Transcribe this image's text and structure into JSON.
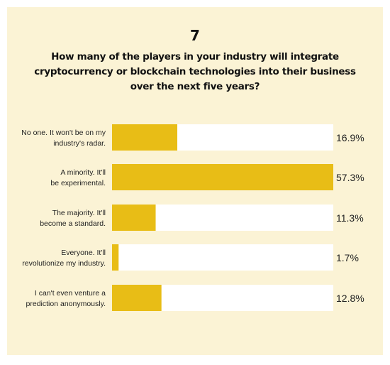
{
  "figure_number": "7",
  "colors": {
    "background": "#fbf3d5",
    "bar": "#e8bd16",
    "track": "#ffffff"
  },
  "chart_data": {
    "type": "bar",
    "orientation": "horizontal",
    "title": "How many of the players in your industry will integrate cryptocurrency or blockchain technologies into their business over the next five years?",
    "categories": [
      "No one. It won't be on my industry's radar.",
      "A minority. It'll be experimental.",
      "The majority. It'll become a standard.",
      "Everyone. It'll revolutionize my industry.",
      "I can't even venture a prediction anonymously."
    ],
    "category_lines": [
      [
        "No one. It won't be on my",
        "industry's radar."
      ],
      [
        "A minority. It'll",
        "be experimental."
      ],
      [
        "The majority. It'll",
        "become a standard."
      ],
      [
        "Everyone. It'll",
        "revolutionize my industry."
      ],
      [
        "I can't even venture a",
        "prediction anonymously."
      ]
    ],
    "values": [
      16.9,
      57.3,
      11.3,
      1.7,
      12.8
    ],
    "value_labels": [
      "16.9%",
      "57.3%",
      "11.3%",
      "1.7%",
      "12.8%"
    ],
    "xlim": [
      0,
      57.3
    ],
    "grid": false,
    "legend": "none"
  }
}
